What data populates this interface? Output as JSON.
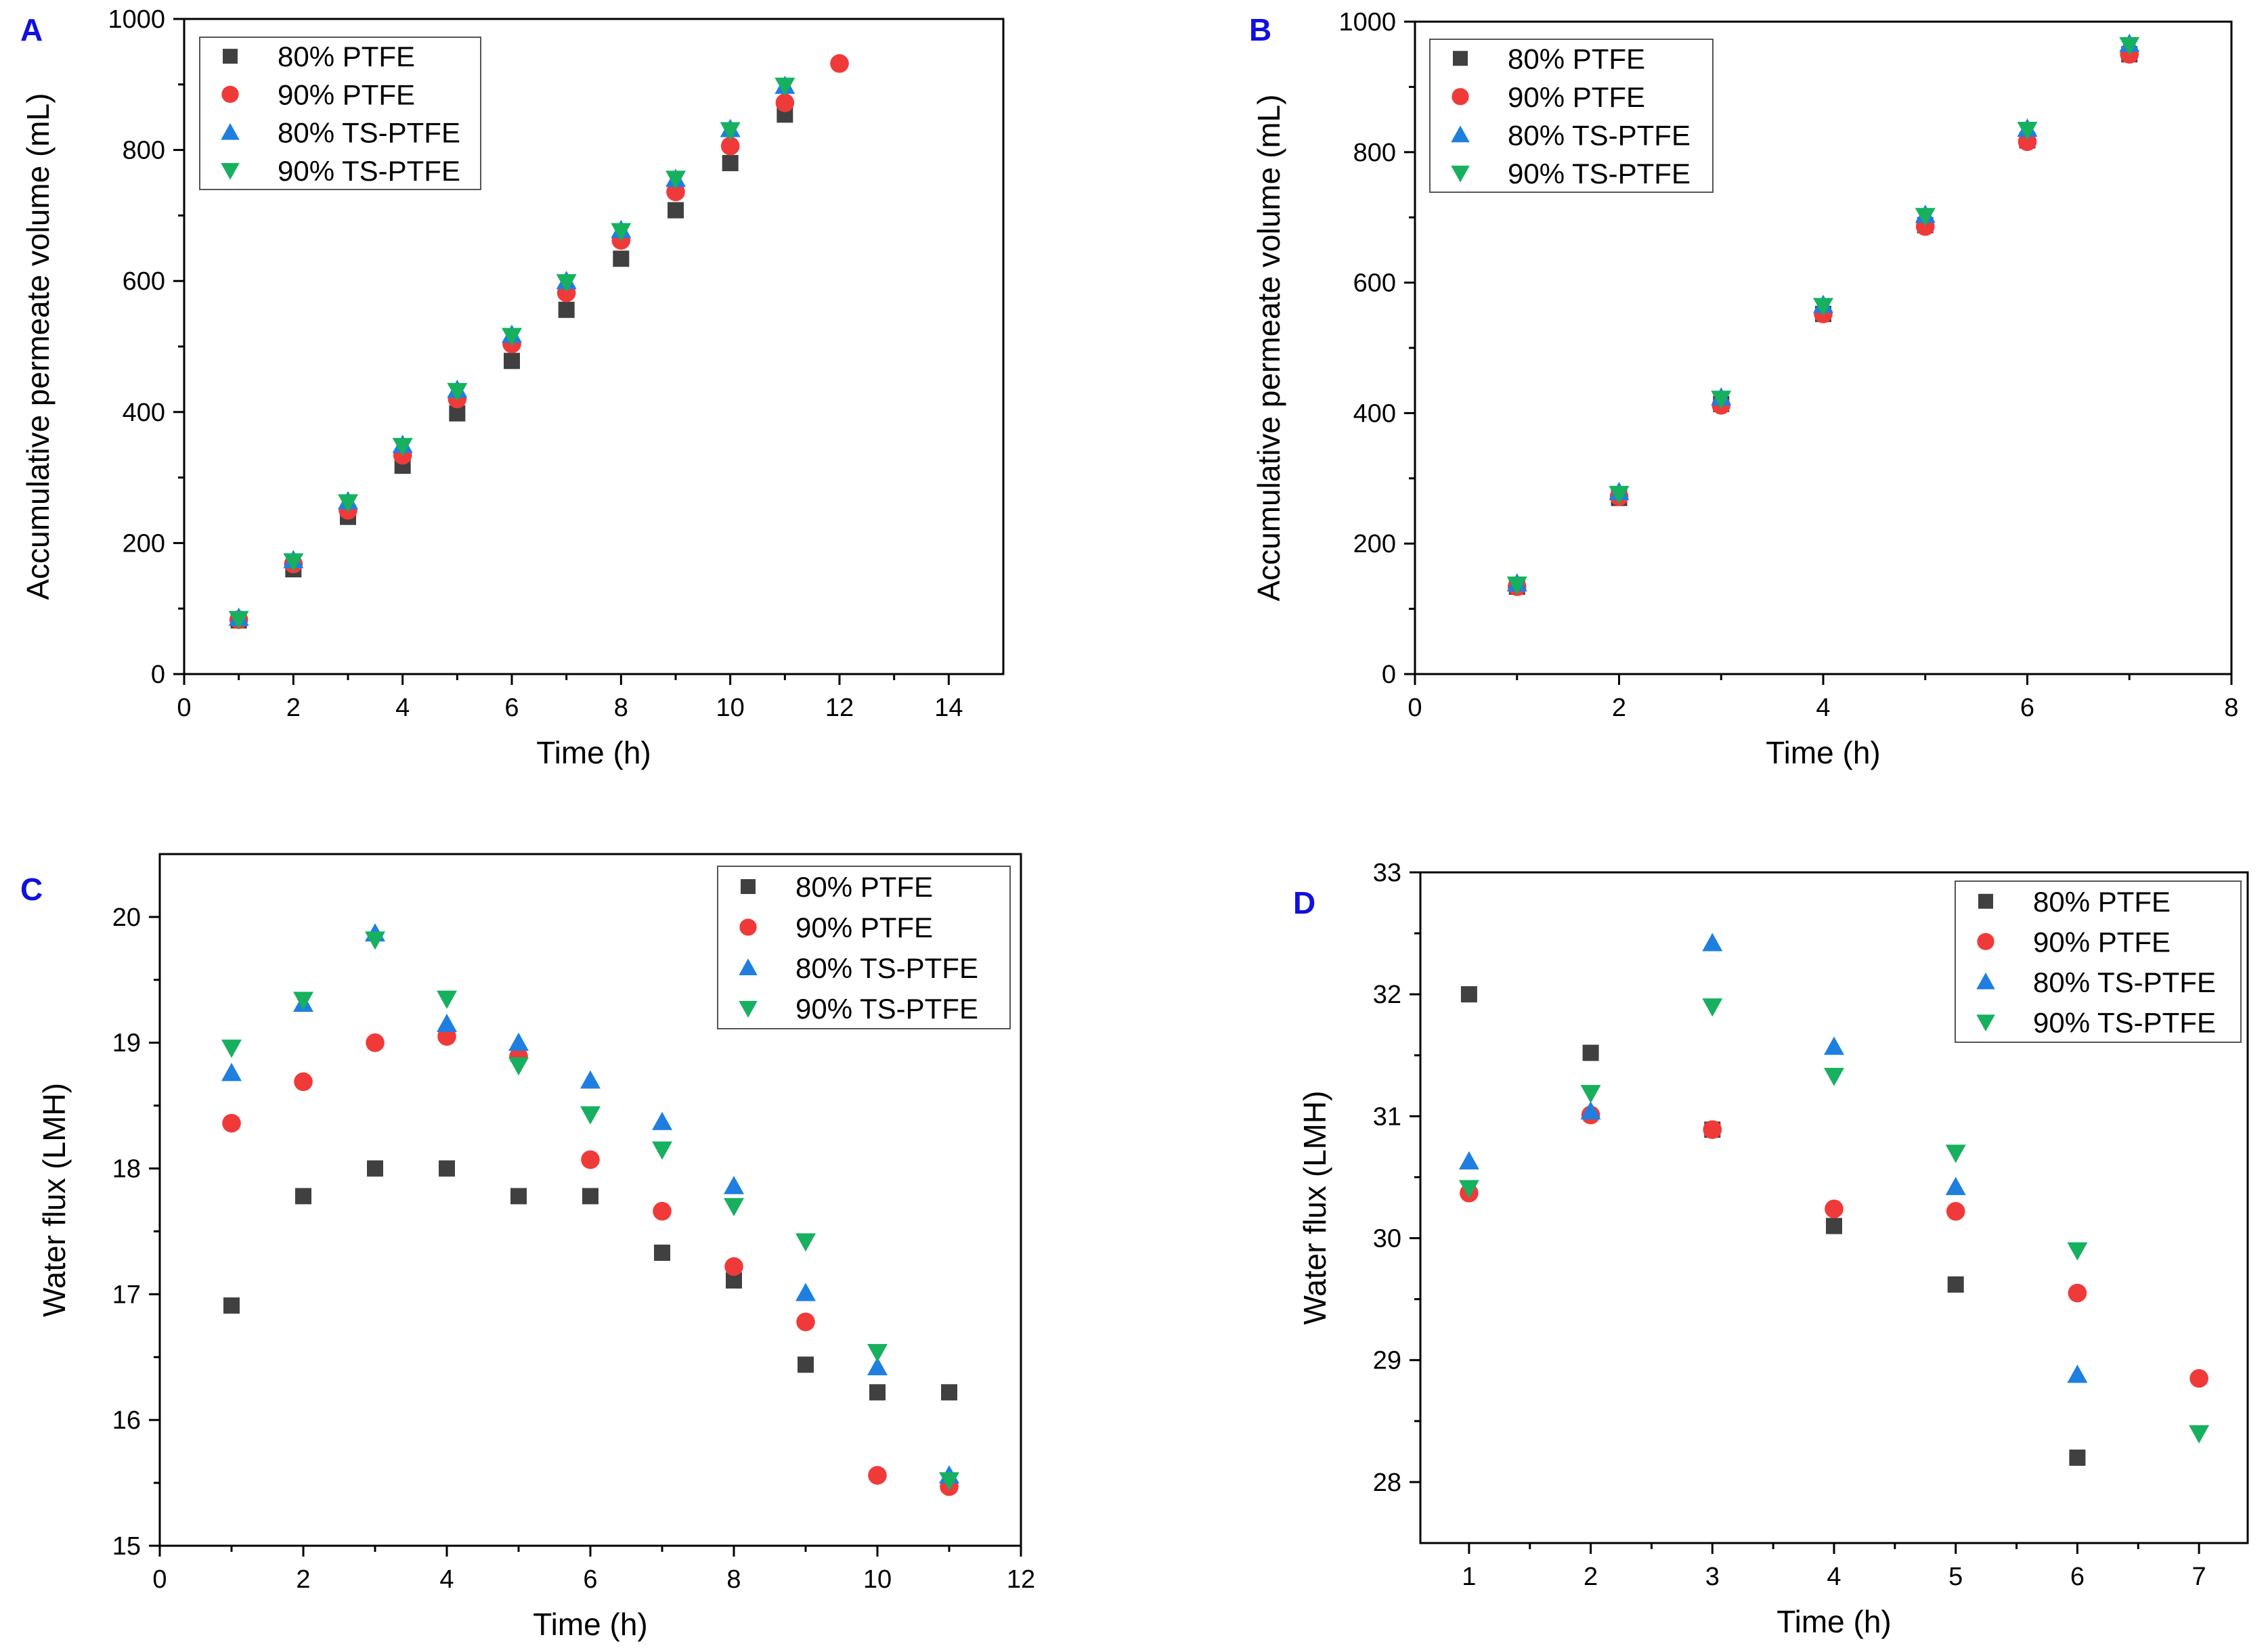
{
  "figure": {
    "legend_labels": [
      "80% PTFE",
      "90% PTFE",
      "80% TS-PTFE",
      "90% TS-PTFE"
    ],
    "colors": {
      "80% PTFE": "#404040",
      "90% PTFE": "#f03a3a",
      "80% TS-PTFE": "#1f7fe0",
      "90% TS-PTFE": "#17b05f",
      "panel_letter": "#1010e0",
      "axis": "#000000"
    },
    "markers": {
      "80% PTFE": "square",
      "90% PTFE": "circle",
      "80% TS-PTFE": "triangle-up",
      "90% TS-PTFE": "triangle-down"
    }
  },
  "chart_data": [
    {
      "panel": "A",
      "type": "scatter",
      "xlabel": "Time (h)",
      "ylabel": "Accumulative permeate volume (mL)",
      "xlim": [
        0,
        15
      ],
      "ylim": [
        0,
        1000
      ],
      "xticks": [
        0,
        2,
        4,
        6,
        8,
        10,
        12,
        14
      ],
      "yticks": [
        0,
        200,
        400,
        600,
        800,
        1000
      ],
      "legend_position": "top-left",
      "series": [
        {
          "name": "80% PTFE",
          "x": [
            1,
            2,
            3,
            4,
            5,
            6,
            7,
            8,
            9,
            10,
            11
          ],
          "y": [
            82,
            160,
            240,
            318,
            398,
            478,
            556,
            634,
            708,
            780,
            854
          ]
        },
        {
          "name": "90% PTFE",
          "x": [
            1,
            2,
            3,
            4,
            5,
            6,
            7,
            8,
            9,
            10,
            11,
            12
          ],
          "y": [
            83,
            168,
            250,
            334,
            420,
            504,
            582,
            662,
            736,
            806,
            872,
            932
          ]
        },
        {
          "name": "80% TS-PTFE",
          "x": [
            1,
            2,
            3,
            4,
            5,
            6,
            7,
            8,
            9,
            10,
            11
          ],
          "y": [
            86,
            174,
            264,
            350,
            434,
            518,
            600,
            678,
            756,
            832,
            898
          ]
        },
        {
          "name": "90% TS-PTFE",
          "x": [
            1,
            2,
            3,
            4,
            5,
            6,
            7,
            8,
            9,
            10,
            11
          ],
          "y": [
            84,
            172,
            262,
            348,
            432,
            516,
            598,
            676,
            756,
            830,
            898
          ]
        }
      ]
    },
    {
      "panel": "B",
      "type": "scatter",
      "xlabel": "Time (h)",
      "ylabel": "Accumulative permeate volume (mL)",
      "xlim": [
        0,
        8
      ],
      "ylim": [
        0,
        1000
      ],
      "xticks": [
        0,
        2,
        4,
        6,
        8
      ],
      "yticks": [
        0,
        200,
        400,
        600,
        800,
        1000
      ],
      "legend_position": "top-left",
      "series": [
        {
          "name": "80% PTFE",
          "x": [
            1,
            2,
            3,
            4,
            5,
            6,
            7
          ],
          "y": [
            134,
            270,
            414,
            552,
            688,
            818,
            950
          ]
        },
        {
          "name": "90% PTFE",
          "x": [
            1,
            2,
            3,
            4,
            5,
            6,
            7
          ],
          "y": [
            134,
            272,
            412,
            552,
            686,
            816,
            950
          ]
        },
        {
          "name": "80% TS-PTFE",
          "x": [
            1,
            2,
            3,
            4,
            5,
            6,
            7
          ],
          "y": [
            139,
            279,
            424,
            566,
            704,
            836,
            966
          ]
        },
        {
          "name": "90% TS-PTFE",
          "x": [
            1,
            2,
            3,
            4,
            5,
            6,
            7
          ],
          "y": [
            137,
            276,
            422,
            564,
            702,
            834,
            964
          ]
        }
      ]
    },
    {
      "panel": "C",
      "type": "scatter",
      "xlabel": "Time (h)",
      "ylabel": "Water flux (LMH)",
      "xlim": [
        0,
        12
      ],
      "ylim": [
        15,
        20.5
      ],
      "xticks": [
        0,
        2,
        4,
        6,
        8,
        10,
        12
      ],
      "yticks": [
        15,
        16,
        17,
        18,
        19,
        20
      ],
      "legend_position": "top-right",
      "series": [
        {
          "name": "80% PTFE",
          "x": [
            1,
            2,
            3,
            4,
            5,
            6,
            7,
            8,
            9,
            10,
            11
          ],
          "y": [
            16.91,
            17.78,
            18.0,
            18.0,
            17.78,
            17.78,
            17.33,
            17.11,
            16.44,
            16.22,
            16.22
          ]
        },
        {
          "name": "90% PTFE",
          "x": [
            1,
            2,
            3,
            4,
            5,
            6,
            7,
            8,
            9,
            10,
            11
          ],
          "y": [
            18.36,
            18.69,
            19.0,
            19.05,
            18.89,
            18.07,
            17.66,
            17.22,
            16.78,
            15.56,
            15.47
          ]
        },
        {
          "name": "80% TS-PTFE",
          "x": [
            1,
            2,
            3,
            4,
            5,
            6,
            7,
            8,
            9,
            10,
            11
          ],
          "y": [
            18.76,
            19.31,
            19.87,
            19.15,
            19.0,
            18.7,
            18.37,
            17.86,
            17.01,
            16.42,
            15.56
          ]
        },
        {
          "name": "90% TS-PTFE",
          "x": [
            1,
            2,
            3,
            4,
            5,
            6,
            7,
            8,
            9,
            10,
            11
          ],
          "y": [
            18.96,
            19.34,
            19.82,
            19.35,
            18.82,
            18.43,
            18.15,
            17.7,
            17.42,
            16.54,
            15.52
          ]
        }
      ]
    },
    {
      "panel": "D",
      "type": "scatter",
      "xlabel": "Time (h)",
      "ylabel": "Water flux (LMH)",
      "xlim": [
        0.6,
        7.4
      ],
      "ylim": [
        27.5,
        33
      ],
      "xticks": [
        1,
        2,
        3,
        4,
        5,
        6,
        7
      ],
      "yticks": [
        28,
        29,
        30,
        31,
        32,
        33
      ],
      "legend_position": "top-right",
      "series": [
        {
          "name": "80% PTFE",
          "x": [
            1,
            2,
            3,
            4,
            5,
            6
          ],
          "y": [
            32.0,
            31.52,
            30.89,
            30.1,
            29.62,
            28.2
          ]
        },
        {
          "name": "90% PTFE",
          "x": [
            1,
            2,
            3,
            4,
            5,
            6,
            7
          ],
          "y": [
            30.37,
            31.01,
            30.89,
            30.24,
            30.22,
            29.55,
            28.85
          ]
        },
        {
          "name": "80% TS-PTFE",
          "x": [
            1,
            2,
            3,
            4,
            5,
            6
          ],
          "y": [
            30.63,
            31.04,
            32.42,
            31.57,
            30.42,
            28.88
          ]
        },
        {
          "name": "90% TS-PTFE",
          "x": [
            1,
            2,
            3,
            4,
            5,
            6,
            7
          ],
          "y": [
            30.41,
            31.19,
            31.9,
            31.33,
            30.7,
            29.9,
            28.4
          ]
        }
      ]
    }
  ]
}
